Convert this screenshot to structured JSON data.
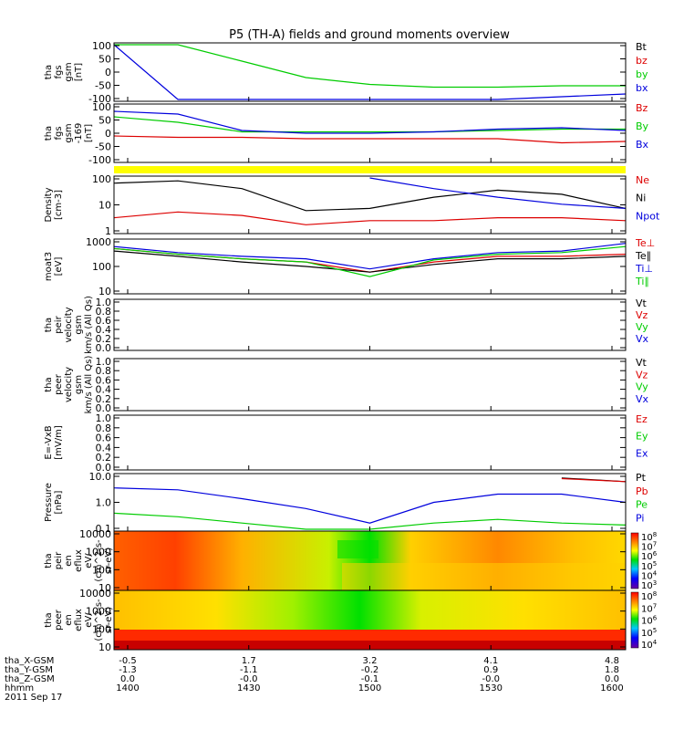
{
  "title": "P5 (TH-A) fields and ground moments overview",
  "colors": {
    "black": "#000000",
    "red": "#dd0000",
    "green": "#00cc00",
    "blue": "#0000dd",
    "yellow": "#ffff00"
  },
  "panels": [
    {
      "id": "fgs",
      "ylabel": [
        "tha",
        "fgs",
        "gsm",
        "[nT]"
      ],
      "ticks": [
        "100",
        "50",
        "0",
        "-50",
        "-100"
      ],
      "legend": [
        {
          "text": "Bt",
          "color": "black"
        },
        {
          "text": "bz",
          "color": "red"
        },
        {
          "text": "by",
          "color": "green"
        },
        {
          "text": "bx",
          "color": "blue"
        }
      ]
    },
    {
      "id": "fgs_rot",
      "ylabel": [
        "tha",
        "fgs",
        "gsm",
        "-169",
        "[nT]"
      ],
      "ticks": [
        "100",
        "50",
        "0",
        "-50",
        "-100"
      ],
      "legend": [
        {
          "text": "Bz",
          "color": "red"
        },
        {
          "text": "By",
          "color": "green"
        },
        {
          "text": "Bx",
          "color": "blue"
        }
      ]
    },
    {
      "id": "density",
      "ylabel": [
        "Density",
        "[cm-3]"
      ],
      "ticks": [
        "100",
        "10",
        "1"
      ],
      "legend": [
        {
          "text": "Ne",
          "color": "red"
        },
        {
          "text": "Ni",
          "color": "black"
        },
        {
          "text": "Npot",
          "color": "blue"
        }
      ]
    },
    {
      "id": "temp",
      "ylabel": [
        "moat3",
        "[eV]"
      ],
      "ticks": [
        "1000",
        "100",
        "10"
      ],
      "legend": [
        {
          "text": "Te⊥",
          "color": "red"
        },
        {
          "text": "Te∥",
          "color": "black"
        },
        {
          "text": "Ti⊥",
          "color": "blue"
        },
        {
          "text": "Ti∥",
          "color": "green"
        }
      ]
    },
    {
      "id": "peir_vel",
      "ylabel": [
        "tha",
        "peir",
        "velocity",
        "gsm",
        "km/s (All Qs)"
      ],
      "ticks": [
        "1.0",
        "0.8",
        "0.6",
        "0.4",
        "0.2",
        "0.0"
      ],
      "legend": [
        {
          "text": "Vt",
          "color": "black"
        },
        {
          "text": "Vz",
          "color": "red"
        },
        {
          "text": "Vy",
          "color": "green"
        },
        {
          "text": "Vx",
          "color": "blue"
        }
      ]
    },
    {
      "id": "peer_vel",
      "ylabel": [
        "tha",
        "peer",
        "velocity",
        "gsm",
        "km/s (All Qs)"
      ],
      "ticks": [
        "1.0",
        "0.8",
        "0.6",
        "0.4",
        "0.2",
        "0.0"
      ],
      "legend": [
        {
          "text": "Vt",
          "color": "black"
        },
        {
          "text": "Vz",
          "color": "red"
        },
        {
          "text": "Vy",
          "color": "green"
        },
        {
          "text": "Vx",
          "color": "blue"
        }
      ]
    },
    {
      "id": "efield",
      "ylabel": [
        "E=-VxB",
        "[mV/m]"
      ],
      "ticks": [
        "1.0",
        "0.8",
        "0.6",
        "0.4",
        "0.2",
        "0.0"
      ],
      "legend": [
        {
          "text": "Ez",
          "color": "red"
        },
        {
          "text": "Ey",
          "color": "green"
        },
        {
          "text": "Ex",
          "color": "blue"
        }
      ]
    },
    {
      "id": "pressure",
      "ylabel": [
        "Pressure",
        "[nPa]"
      ],
      "ticks": [
        "10.0",
        "1.0",
        "0.1"
      ],
      "legend": [
        {
          "text": "Pt",
          "color": "black"
        },
        {
          "text": "Pb",
          "color": "red"
        },
        {
          "text": "Pe",
          "color": "green"
        },
        {
          "text": "Pi",
          "color": "blue"
        }
      ]
    },
    {
      "id": "peir_spec",
      "ylabel": [
        "tha",
        "peir",
        "en",
        "eflux",
        "eV/",
        "(cm^2-s-",
        "sr-eV)"
      ],
      "ticks": [
        "10000",
        "1000",
        "100",
        "10"
      ],
      "colorbar": [
        "10^8",
        "10^7",
        "10^6",
        "10^5",
        "10^4",
        "10^3"
      ]
    },
    {
      "id": "peer_spec",
      "ylabel": [
        "tha",
        "peer",
        "en",
        "eflux",
        "eV/",
        "(cm^2-s-",
        "sr-eV)"
      ],
      "ticks": [
        "10000",
        "1000",
        "100",
        "10"
      ],
      "colorbar": [
        "10^8",
        "10^7",
        "10^6",
        "10^5",
        "10^4"
      ]
    }
  ],
  "xaxis": {
    "row_labels": [
      "tha_X-GSM",
      "tha_Y-GSM",
      "tha_Z-GSM",
      "hhmm",
      "2011 Sep 17"
    ],
    "ticks": [
      {
        "x_gsm": "-0.5",
        "y_gsm": "-1.3",
        "z_gsm": "0.0",
        "hhmm": "1400"
      },
      {
        "x_gsm": "1.7",
        "y_gsm": "-1.1",
        "z_gsm": "-0.0",
        "hhmm": "1430"
      },
      {
        "x_gsm": "3.2",
        "y_gsm": "-0.2",
        "z_gsm": "-0.1",
        "hhmm": "1500"
      },
      {
        "x_gsm": "4.1",
        "y_gsm": "0.9",
        "z_gsm": "-0.0",
        "hhmm": "1530"
      },
      {
        "x_gsm": "4.8",
        "y_gsm": "1.8",
        "z_gsm": "0.0",
        "hhmm": "1600"
      }
    ]
  },
  "chart_data": {
    "type": "line",
    "title": "P5 (TH-A) fields and ground moments overview",
    "x": [
      "1400",
      "1415",
      "1430",
      "1445",
      "1500",
      "1515",
      "1530",
      "1545",
      "1600"
    ],
    "panels": [
      {
        "name": "fgs gsm [nT]",
        "ylim": [
          -100,
          100
        ],
        "series": [
          {
            "name": "by",
            "values": [
              100,
              100,
              40,
              -20,
              -45,
              -55,
              -55,
              -50,
              -50
            ]
          },
          {
            "name": "bx",
            "values": [
              100,
              -100,
              -100,
              -100,
              -100,
              -100,
              -100,
              -90,
              -80
            ]
          }
        ]
      },
      {
        "name": "fgs gsm -169 [nT]",
        "ylim": [
          -100,
          100
        ],
        "series": [
          {
            "name": "Bz",
            "values": [
              -10,
              -15,
              -15,
              -20,
              -20,
              -20,
              -20,
              -35,
              -30
            ]
          },
          {
            "name": "By",
            "values": [
              60,
              40,
              5,
              5,
              5,
              5,
              10,
              15,
              15
            ]
          },
          {
            "name": "Bx",
            "values": [
              80,
              70,
              10,
              0,
              0,
              5,
              15,
              20,
              10
            ]
          }
        ]
      },
      {
        "name": "Density [cm-3]",
        "ylim": [
          1,
          200
        ],
        "log": true,
        "series": [
          {
            "name": "Ne",
            "values": [
              4,
              7,
              5,
              2,
              3,
              3,
              4,
              4,
              3
            ]
          },
          {
            "name": "Ni",
            "values": [
              120,
              150,
              70,
              8,
              10,
              30,
              60,
              40,
              10
            ]
          },
          {
            "name": "Npot",
            "values": [
              null,
              null,
              null,
              null,
              200,
              70,
              30,
              15,
              10
            ]
          }
        ]
      },
      {
        "name": "moat3 [eV]",
        "ylim": [
          10,
          1000
        ],
        "log": true,
        "series": [
          {
            "name": "Te⊥",
            "values": [
              500,
              300,
              200,
              150,
              60,
              150,
              250,
              250,
              300
            ]
          },
          {
            "name": "Te∥",
            "values": [
              400,
              250,
              150,
              100,
              60,
              120,
              200,
              200,
              250
            ]
          },
          {
            "name": "Ti⊥",
            "values": [
              600,
              350,
              250,
              200,
              80,
              200,
              350,
              400,
              800
            ]
          },
          {
            "name": "Ti∥",
            "values": [
              500,
              300,
              200,
              150,
              40,
              180,
              300,
              350,
              600
            ]
          }
        ]
      },
      {
        "name": "Pressure [nPa]",
        "ylim": [
          0.05,
          20
        ],
        "log": true,
        "series": [
          {
            "name": "Pt",
            "values": [
              null,
              null,
              null,
              null,
              null,
              null,
              null,
              15,
              10
            ]
          },
          {
            "name": "Pb",
            "values": [
              null,
              null,
              null,
              null,
              null,
              null,
              null,
              14,
              10
            ]
          },
          {
            "name": "Pe",
            "values": [
              0.3,
              0.2,
              0.1,
              0.05,
              0.05,
              0.1,
              0.15,
              0.1,
              0.08
            ]
          },
          {
            "name": "Pi",
            "values": [
              5,
              4,
              1.5,
              0.5,
              0.1,
              1,
              2.5,
              2.5,
              1
            ]
          }
        ]
      }
    ]
  }
}
